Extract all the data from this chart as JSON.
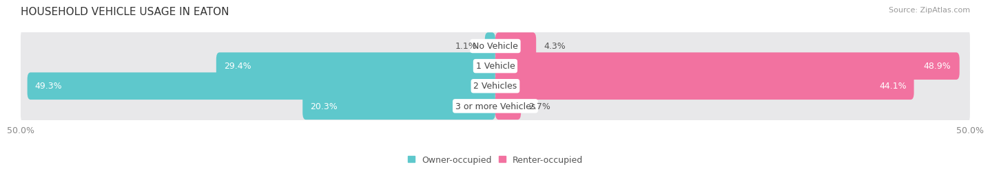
{
  "title": "HOUSEHOLD VEHICLE USAGE IN EATON",
  "source": "Source: ZipAtlas.com",
  "categories": [
    "No Vehicle",
    "1 Vehicle",
    "2 Vehicles",
    "3 or more Vehicles"
  ],
  "owner_values": [
    1.1,
    29.4,
    49.3,
    20.3
  ],
  "renter_values": [
    4.3,
    48.9,
    44.1,
    2.7
  ],
  "owner_color": "#5ec8cc",
  "renter_color": "#f272a0",
  "bar_bg_color": "#e8e8ea",
  "bar_height": 0.68,
  "xlim": [
    -50,
    50
  ],
  "xtick_left": -50,
  "xtick_right": 50,
  "xtick_left_label": "50.0%",
  "xtick_right_label": "50.0%",
  "legend_labels": [
    "Owner-occupied",
    "Renter-occupied"
  ],
  "title_fontsize": 11,
  "label_fontsize": 9,
  "axis_fontsize": 9,
  "source_fontsize": 8,
  "background_color": "#ffffff"
}
